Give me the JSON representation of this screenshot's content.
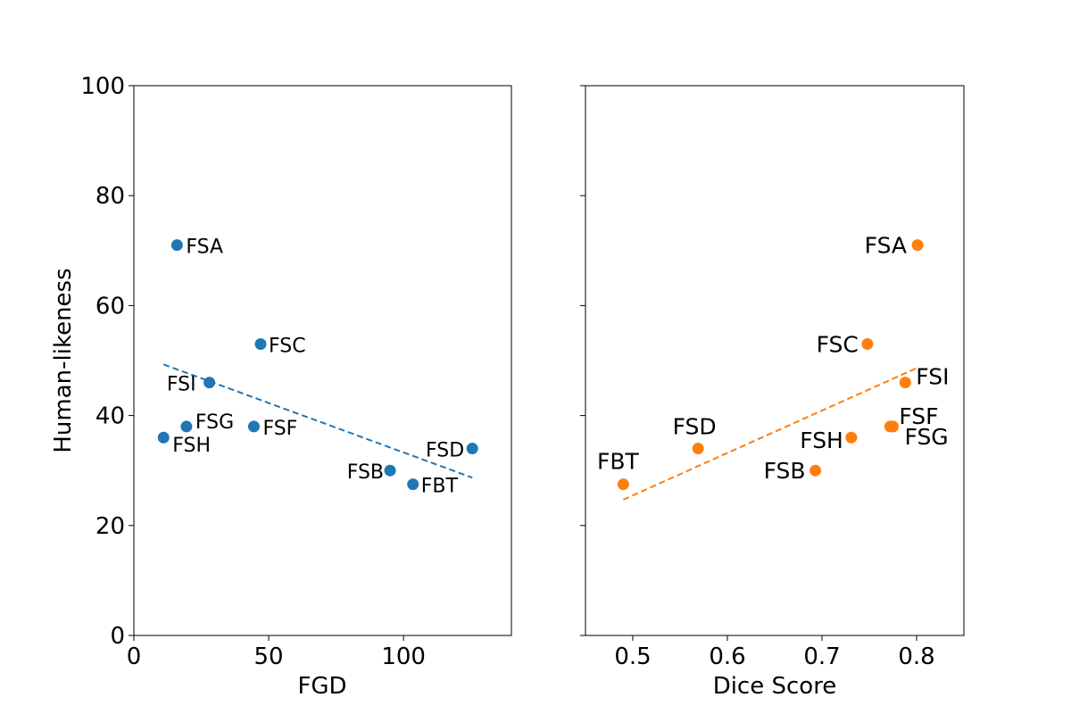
{
  "chart_data": [
    {
      "type": "scatter",
      "xlabel": "FGD",
      "ylabel": "Human-likeness",
      "xlim": [
        0,
        140
      ],
      "ylim": [
        0,
        100
      ],
      "xticks": [
        0,
        50,
        100
      ],
      "yticks": [
        0,
        20,
        40,
        60,
        80,
        100
      ],
      "color": "#1f77b4",
      "grid": false,
      "points": [
        {
          "label": "FSA",
          "x": 16,
          "y": 71
        },
        {
          "label": "FSC",
          "x": 47,
          "y": 53
        },
        {
          "label": "FSI",
          "x": 28,
          "y": 46
        },
        {
          "label": "FSG",
          "x": 19.5,
          "y": 38
        },
        {
          "label": "FSF",
          "x": 44.5,
          "y": 38
        },
        {
          "label": "FSH",
          "x": 11,
          "y": 36
        },
        {
          "label": "FSD",
          "x": 125.5,
          "y": 34
        },
        {
          "label": "FSB",
          "x": 95,
          "y": 30
        },
        {
          "label": "FBT",
          "x": 103.5,
          "y": 27.5
        }
      ],
      "trendline": {
        "x": [
          11,
          125.5
        ],
        "y": [
          49.3,
          28.7
        ],
        "style": "dashed"
      }
    },
    {
      "type": "scatter",
      "xlabel": "Dice Score",
      "ylabel": "",
      "xlim": [
        0.45,
        0.85
      ],
      "ylim": [
        0,
        100
      ],
      "xticks": [
        0.5,
        0.6,
        0.7,
        0.8
      ],
      "yticks": [
        0,
        20,
        40,
        60,
        80,
        100
      ],
      "color": "#ff7f0e",
      "grid": false,
      "points": [
        {
          "label": "FSA",
          "x": 0.801,
          "y": 71
        },
        {
          "label": "FSC",
          "x": 0.748,
          "y": 53
        },
        {
          "label": "FSI",
          "x": 0.788,
          "y": 46
        },
        {
          "label": "FSF",
          "x": 0.772,
          "y": 38
        },
        {
          "label": "FSG",
          "x": 0.775,
          "y": 38
        },
        {
          "label": "FSH",
          "x": 0.731,
          "y": 36
        },
        {
          "label": "FSD",
          "x": 0.569,
          "y": 34
        },
        {
          "label": "FSB",
          "x": 0.693,
          "y": 30
        },
        {
          "label": "FBT",
          "x": 0.49,
          "y": 27.5
        }
      ],
      "trendline": {
        "x": [
          0.49,
          0.801
        ],
        "y": [
          24.7,
          48.7
        ],
        "style": "dashed"
      }
    }
  ]
}
